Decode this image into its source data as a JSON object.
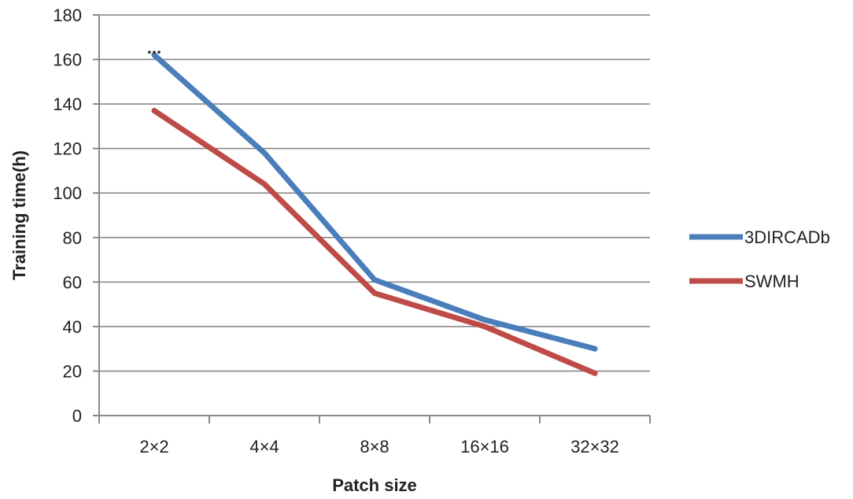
{
  "chart_data": {
    "type": "line",
    "categories": [
      "2×2",
      "4×4",
      "8×8",
      "16×16",
      "32×32"
    ],
    "series": [
      {
        "name": "3DIRCADb",
        "color": "#4a7ebb",
        "values": [
          162,
          118,
          61,
          43,
          30
        ]
      },
      {
        "name": "SWMH",
        "color": "#be4b48",
        "values": [
          137,
          104,
          55,
          40,
          19
        ]
      }
    ],
    "title": "",
    "xlabel": "Patch size",
    "ylabel": "Training time(h)",
    "ylim": [
      0,
      180
    ],
    "yticks": [
      0,
      20,
      40,
      60,
      80,
      100,
      120,
      140,
      160,
      180
    ],
    "grid": true,
    "legend_position": "right",
    "annotation": "..."
  }
}
